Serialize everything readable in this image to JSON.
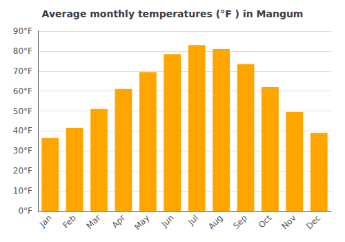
{
  "chart_data": {
    "type": "bar",
    "title": "Average monthly temperatures (°F ) in Mangum",
    "categories": [
      "Jan",
      "Feb",
      "Mar",
      "Apr",
      "May",
      "Jun",
      "Jul",
      "Aug",
      "Sep",
      "Oct",
      "Nov",
      "Dec"
    ],
    "values": [
      36.5,
      41.5,
      51.0,
      61.0,
      69.5,
      78.5,
      83.0,
      81.0,
      73.5,
      62.0,
      49.5,
      39.0
    ],
    "color": "#FFA500",
    "ylim": [
      0,
      90
    ],
    "yticks": [
      {
        "value": 0,
        "label": "0°F"
      },
      {
        "value": 10,
        "label": "10°F"
      },
      {
        "value": 20,
        "label": "20°F"
      },
      {
        "value": 30,
        "label": "30°F"
      },
      {
        "value": 40,
        "label": "40°F"
      },
      {
        "value": 50,
        "label": "50°F"
      },
      {
        "value": 60,
        "label": "60°F"
      },
      {
        "value": 70,
        "label": "70°F"
      },
      {
        "value": 80,
        "label": "80°F"
      },
      {
        "value": 90,
        "label": "90°F"
      }
    ],
    "grid": true
  }
}
